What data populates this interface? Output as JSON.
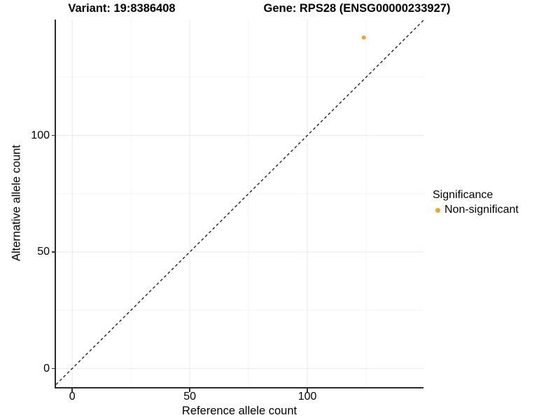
{
  "titles": {
    "variant": "Variant: 19:8386408",
    "gene": "Gene: RPS28 (ENSG00000233927)"
  },
  "axes": {
    "x": {
      "label": "Reference allele count",
      "tick_labels": [
        "0",
        "50",
        "100"
      ]
    },
    "y": {
      "label": "Alternative allele count",
      "tick_labels": [
        "0",
        "50",
        "100"
      ]
    }
  },
  "legend": {
    "title": "Significance",
    "items": [
      {
        "label": "Non-significant",
        "color": "#F9A12E",
        "marker": "dot-icon"
      }
    ]
  },
  "chart_data": {
    "type": "scatter",
    "title": "Variant: 19:8386408 | Gene: RPS28 (ENSG00000233927)",
    "xlabel": "Reference allele count",
    "ylabel": "Alternative allele count",
    "xlim": [
      -6.9,
      149.4
    ],
    "ylim": [
      -8.0,
      149.7
    ],
    "x_ticks": [
      0,
      50,
      100
    ],
    "y_ticks": [
      0,
      50,
      100
    ],
    "x_minor_ticks": [
      25,
      75,
      125
    ],
    "y_minor_ticks": [
      25,
      75,
      125
    ],
    "grid": "major+minor",
    "legend_position": "right",
    "series": [
      {
        "name": "Non-significant",
        "color": "#F9A12E",
        "points": [
          {
            "x": 124,
            "y": 142
          }
        ]
      }
    ],
    "reference_line": {
      "type": "identity y=x",
      "style": "dashed",
      "color": "#000000"
    }
  },
  "colors": {
    "background": "#ffffff",
    "grid_major": "#e9e9e9",
    "grid_minor": "#f4f4f4",
    "axis_line": "#2b2b2b",
    "tick": "#333333",
    "text": "#000000",
    "point": "#F9A12E"
  }
}
